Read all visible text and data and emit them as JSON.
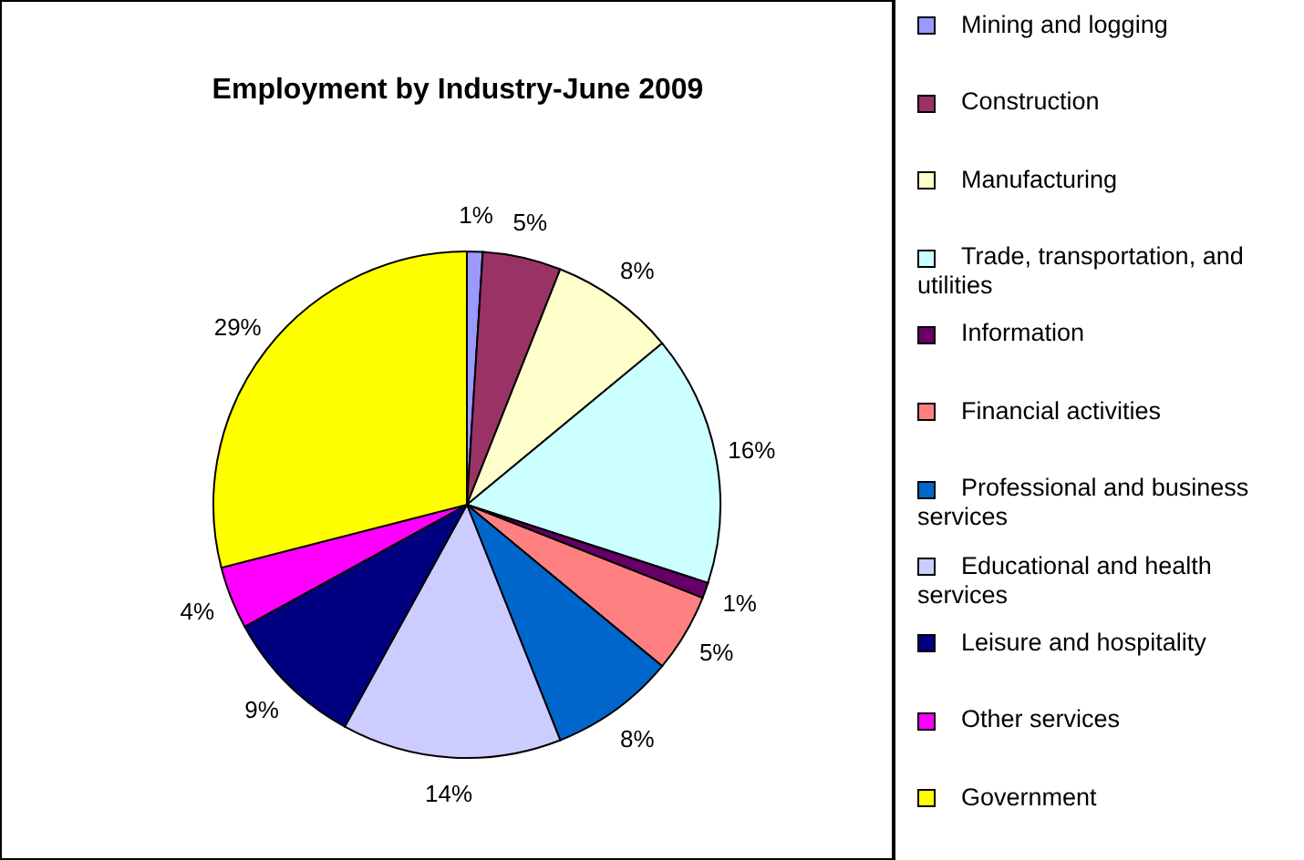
{
  "chart_data": {
    "type": "pie",
    "title": "Employment by Industry-June 2009",
    "categories": [
      "Mining and logging",
      "Construction",
      "Manufacturing",
      "Trade, transportation, and utilities",
      "Information",
      "Financial activities",
      "Professional and business services",
      "Educational and health services",
      "Leisure and hospitality",
      "Other services",
      "Government"
    ],
    "values": [
      1,
      5,
      8,
      16,
      1,
      5,
      8,
      14,
      9,
      4,
      29
    ],
    "value_labels": [
      "1%",
      "5%",
      "8%",
      "16%",
      "1%",
      "5%",
      "8%",
      "14%",
      "9%",
      "4%",
      "29%"
    ],
    "colors": [
      "#9999ff",
      "#993366",
      "#ffffcc",
      "#ccffff",
      "#660066",
      "#ff8080",
      "#0066cc",
      "#ccccff",
      "#000080",
      "#ff00ff",
      "#ffff00"
    ],
    "legend": "right"
  }
}
